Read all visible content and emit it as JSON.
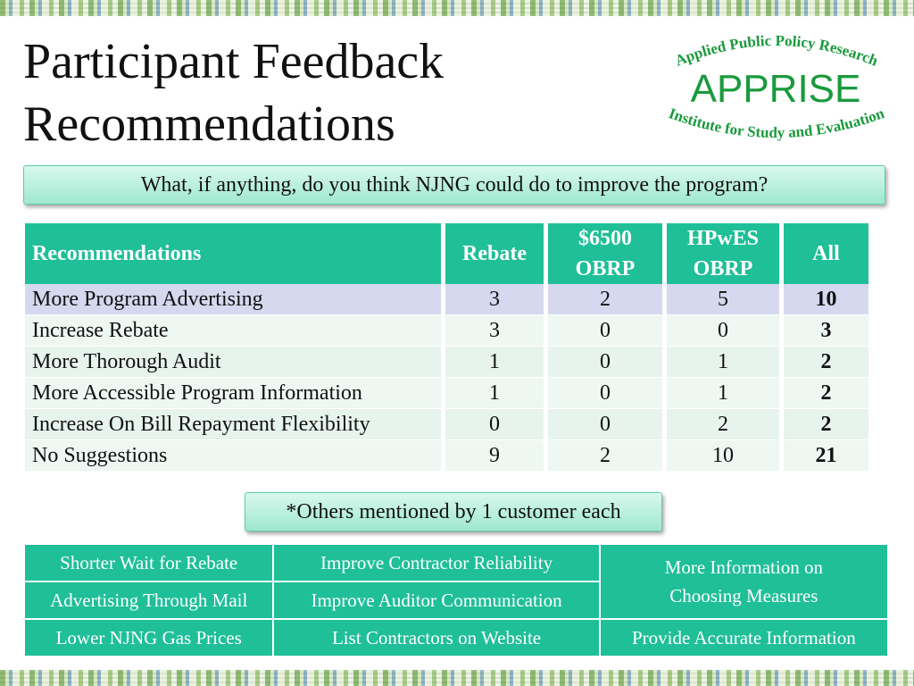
{
  "slide": {
    "title_line1": "Participant Feedback",
    "title_line2": "Recommendations",
    "question": "What, if anything, do you think NJNG could do to improve the program?",
    "note": "*Others mentioned by 1 customer each"
  },
  "logo": {
    "top_arc": "Applied Public Policy Research",
    "name": "APPRISE",
    "bottom_arc": "Institute for Study and Evaluation",
    "color": "#1a9a3c"
  },
  "table": {
    "headers": {
      "recommendations": "Recommendations",
      "rebate": "Rebate",
      "obrp_6500_line1": "$6500",
      "obrp_6500_line2": "OBRP",
      "hpwes_line1": "HPwES",
      "hpwes_line2": "OBRP",
      "all": "All"
    },
    "rows": [
      {
        "label": "More Program Advertising",
        "rebate": "3",
        "obrp": "2",
        "hpwes": "5",
        "all": "10"
      },
      {
        "label": "Increase Rebate",
        "rebate": "3",
        "obrp": "0",
        "hpwes": "0",
        "all": "3"
      },
      {
        "label": "More Thorough Audit",
        "rebate": "1",
        "obrp": "0",
        "hpwes": "1",
        "all": "2"
      },
      {
        "label": "More Accessible Program Information",
        "rebate": "1",
        "obrp": "0",
        "hpwes": "1",
        "all": "2"
      },
      {
        "label": "Increase On Bill Repayment Flexibility",
        "rebate": "0",
        "obrp": "0",
        "hpwes": "2",
        "all": "2"
      },
      {
        "label": "No Suggestions",
        "rebate": "9",
        "obrp": "2",
        "hpwes": "10",
        "all": "21"
      }
    ]
  },
  "others": {
    "r1c1": "Shorter Wait for Rebate",
    "r1c2": "Improve Contractor Reliability",
    "merged_line1": "More Information on",
    "merged_line2": "Choosing Measures",
    "r2c1": "Advertising Through Mail",
    "r2c2": "Improve Auditor Communication",
    "r3c1": "Lower NJNG Gas Prices",
    "r3c2": "List Contractors on Website",
    "r3c3": "Provide Accurate Information"
  },
  "colors": {
    "accent": "#1fbf98",
    "row_highlight": "#d6d8ef",
    "row_alt": "#e7f3ed"
  }
}
